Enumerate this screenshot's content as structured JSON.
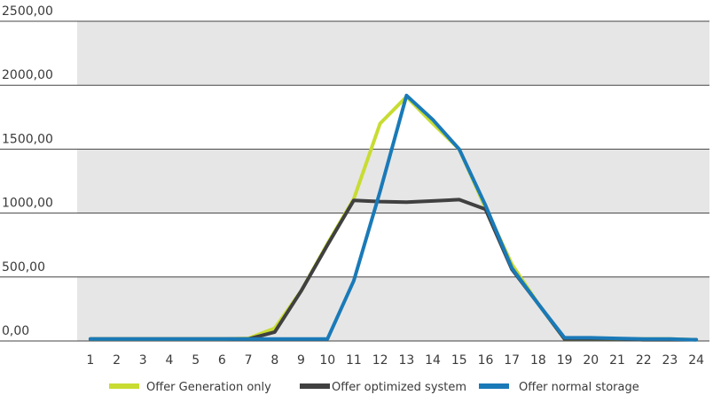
{
  "chart_data": {
    "type": "line",
    "title": "",
    "xlabel": "",
    "ylabel": "",
    "x": [
      1,
      2,
      3,
      4,
      5,
      6,
      7,
      8,
      9,
      10,
      11,
      12,
      13,
      14,
      15,
      16,
      17,
      18,
      19,
      20,
      21,
      22,
      23,
      24
    ],
    "ylim": [
      0,
      2500
    ],
    "yticks": [
      0,
      500,
      1000,
      1500,
      2000,
      2500
    ],
    "ytick_labels": [
      "0,00",
      "500,00",
      "1000,00",
      "1500,00",
      "2000,00",
      "2500,00"
    ],
    "grid": "alternating horizontal bands",
    "band_color": "#e6e6e6",
    "legend_position": "bottom",
    "series": [
      {
        "name": "Offer Generation only",
        "color": "#c8dc32",
        "values": [
          15,
          15,
          15,
          15,
          15,
          15,
          20,
          100,
          390,
          760,
          1110,
          1700,
          1910,
          1700,
          1500,
          1040,
          600,
          290,
          15,
          15,
          15,
          15,
          15,
          10
        ]
      },
      {
        "name": "Offer optimized system",
        "color": "#404040",
        "values": [
          15,
          15,
          15,
          15,
          15,
          15,
          15,
          70,
          390,
          750,
          1100,
          1090,
          1085,
          1095,
          1105,
          1030,
          560,
          290,
          15,
          15,
          15,
          10,
          10,
          10
        ]
      },
      {
        "name": "Offer normal storage",
        "color": "#1a7ab8",
        "values": [
          15,
          15,
          15,
          15,
          15,
          15,
          15,
          15,
          15,
          15,
          470,
          1170,
          1920,
          1730,
          1500,
          1060,
          570,
          290,
          25,
          25,
          20,
          15,
          15,
          10
        ]
      }
    ]
  }
}
